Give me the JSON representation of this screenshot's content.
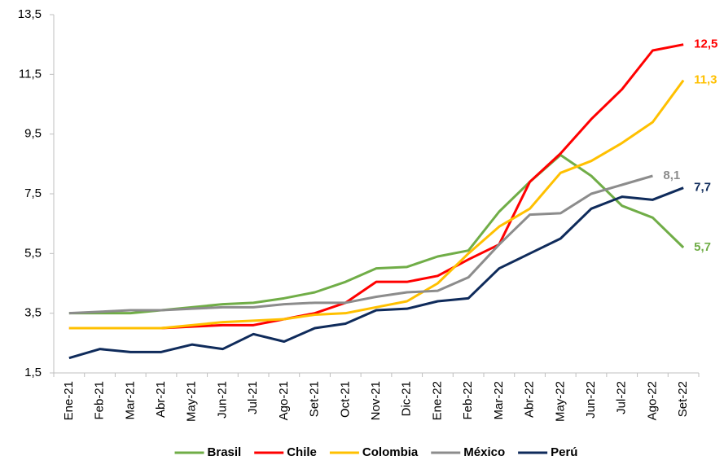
{
  "chart_data": {
    "type": "line",
    "categories": [
      "Ene-21",
      "Feb-21",
      "Mar-21",
      "Abr-21",
      "May-21",
      "Jun-21",
      "Jul-21",
      "Ago-21",
      "Set-21",
      "Oct-21",
      "Nov-21",
      "Dic-21",
      "Ene-22",
      "Feb-22",
      "Mar-22",
      "Abr-22",
      "May-22",
      "Jun-22",
      "Jul-22",
      "Ago-22",
      "Set-22"
    ],
    "series": [
      {
        "name": "Brasil",
        "color": "#70ad47",
        "values": [
          3.5,
          3.5,
          3.5,
          3.6,
          3.7,
          3.8,
          3.85,
          4.0,
          4.2,
          4.55,
          5.0,
          5.05,
          5.4,
          5.6,
          6.9,
          7.9,
          8.8,
          8.1,
          7.1,
          6.7,
          5.7
        ],
        "value_labels": [
          null,
          null,
          null,
          null,
          null,
          null,
          null,
          null,
          null,
          null,
          null,
          null,
          null,
          null,
          null,
          null,
          null,
          null,
          null,
          null,
          "5,7"
        ]
      },
      {
        "name": "Chile",
        "color": "#ff0000",
        "values": [
          3.0,
          3.0,
          3.0,
          3.0,
          3.05,
          3.1,
          3.1,
          3.3,
          3.5,
          3.85,
          4.55,
          4.55,
          4.75,
          5.3,
          5.8,
          7.9,
          8.85,
          10.0,
          11.0,
          12.3,
          12.5
        ],
        "value_labels": [
          null,
          null,
          null,
          null,
          null,
          null,
          null,
          null,
          null,
          null,
          null,
          null,
          null,
          null,
          null,
          null,
          null,
          null,
          null,
          null,
          "12,5"
        ]
      },
      {
        "name": "Colombia",
        "color": "#ffc000",
        "values": [
          3.0,
          3.0,
          3.0,
          3.0,
          3.1,
          3.2,
          3.25,
          3.3,
          3.45,
          3.5,
          3.7,
          3.9,
          4.5,
          5.5,
          6.4,
          7.0,
          8.2,
          8.6,
          9.2,
          9.9,
          11.3
        ],
        "value_labels": [
          null,
          null,
          null,
          null,
          null,
          null,
          null,
          null,
          null,
          null,
          null,
          null,
          null,
          null,
          null,
          null,
          null,
          null,
          null,
          null,
          "11,3"
        ]
      },
      {
        "name": "México",
        "color": "#8c8c8c",
        "values": [
          3.5,
          3.55,
          3.6,
          3.6,
          3.65,
          3.7,
          3.7,
          3.8,
          3.85,
          3.85,
          4.05,
          4.2,
          4.25,
          4.7,
          5.8,
          6.8,
          6.85,
          7.5,
          7.8,
          8.1,
          null
        ],
        "value_labels": [
          null,
          null,
          null,
          null,
          null,
          null,
          null,
          null,
          null,
          null,
          null,
          null,
          null,
          null,
          null,
          null,
          null,
          null,
          null,
          "8,1",
          null
        ]
      },
      {
        "name": "Perú",
        "color": "#0f2b5b",
        "values": [
          2.0,
          2.3,
          2.2,
          2.2,
          2.45,
          2.3,
          2.8,
          2.55,
          3.0,
          3.15,
          3.6,
          3.65,
          3.9,
          4.0,
          5.0,
          5.5,
          6.0,
          7.0,
          7.4,
          7.3,
          7.7
        ],
        "value_labels": [
          null,
          null,
          null,
          null,
          null,
          null,
          null,
          null,
          null,
          null,
          null,
          null,
          null,
          null,
          null,
          null,
          null,
          null,
          null,
          null,
          "7,7"
        ]
      }
    ],
    "ylim": [
      1.5,
      13.5
    ],
    "yticks": [
      {
        "value": 1.5,
        "label": "1,5"
      },
      {
        "value": 3.5,
        "label": "3,5"
      },
      {
        "value": 5.5,
        "label": "5,5"
      },
      {
        "value": 7.5,
        "label": "7,5"
      },
      {
        "value": 9.5,
        "label": "9,5"
      },
      {
        "value": 11.5,
        "label": "11,5"
      },
      {
        "value": 13.5,
        "label": "13,5"
      }
    ],
    "legend": "bottom"
  }
}
